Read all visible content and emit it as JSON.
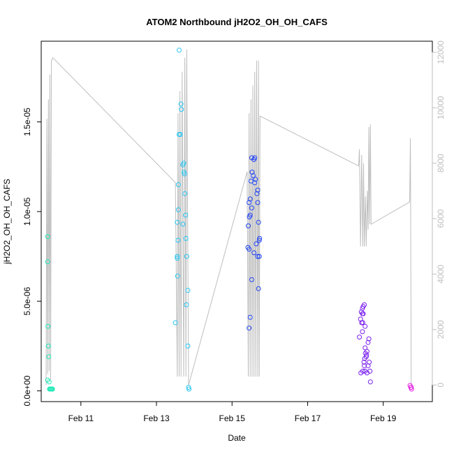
{
  "chart_data": {
    "type": "scatter",
    "title": "ATOM2 Northbound jH2O2_OH_OH_CAFS",
    "xlabel": "Date",
    "ylabel": "jH2O2_OH_OH_CAFS",
    "x_ticks": [
      "Feb 11",
      "Feb 13",
      "Feb 15",
      "Feb 17",
      "Feb 19"
    ],
    "x_tick_values": [
      11,
      13,
      15,
      17,
      19
    ],
    "xlim": [
      9.95,
      20.3
    ],
    "y_ticks": [
      "0.0e+00",
      "5.0e-06",
      "1.0e-05",
      "1.5e-05"
    ],
    "y_tick_values": [
      0,
      5e-06,
      1e-05,
      1.5e-05
    ],
    "ylim": [
      -6e-07,
      1.95e-05
    ],
    "y2_ticks": [
      "0",
      "2000",
      "4000",
      "6000",
      "8000",
      "10000",
      "12000"
    ],
    "y2_tick_values": [
      0,
      2000,
      4000,
      6000,
      8000,
      10000,
      12000
    ],
    "y2lim": [
      -600,
      12400
    ],
    "colors": {
      "axis": "#000000",
      "secondary_axis": "#bebebe",
      "altitude_line": "#bebebe"
    },
    "series": [
      {
        "color": "#1de9b6",
        "points": [
          [
            10.12,
            8.6e-06
          ],
          [
            10.12,
            7.2e-06
          ],
          [
            10.13,
            3.6e-06
          ],
          [
            10.14,
            2.5e-06
          ],
          [
            10.15,
            1.9e-06
          ],
          [
            10.12,
            6e-07
          ],
          [
            10.16,
            5e-07
          ],
          [
            10.17,
            1e-07
          ],
          [
            10.19,
            1e-07
          ],
          [
            10.21,
            1e-07
          ],
          [
            10.23,
            1e-07
          ],
          [
            10.25,
            1e-07
          ]
        ]
      },
      {
        "color": "#26c6f2",
        "points": [
          [
            13.6,
            1.9e-05
          ],
          [
            13.65,
            1.6e-05
          ],
          [
            13.66,
            1.57e-05
          ],
          [
            13.6,
            1.43e-05
          ],
          [
            13.63,
            1.43e-05
          ],
          [
            13.72,
            1.27e-05
          ],
          [
            13.7,
            1.26e-05
          ],
          [
            13.73,
            1.22e-05
          ],
          [
            13.74,
            1.21e-05
          ],
          [
            13.58,
            1.15e-05
          ],
          [
            13.75,
            1.1e-05
          ],
          [
            13.58,
            1.01e-05
          ],
          [
            13.77,
            9.8e-06
          ],
          [
            13.55,
            9.4e-06
          ],
          [
            13.7,
            9.3e-06
          ],
          [
            13.57,
            8.4e-06
          ],
          [
            13.78,
            8.5e-06
          ],
          [
            13.55,
            7.5e-06
          ],
          [
            13.55,
            7.4e-06
          ],
          [
            13.8,
            7.5e-06
          ],
          [
            13.56,
            6.4e-06
          ],
          [
            13.83,
            5.6e-06
          ],
          [
            13.79,
            4.8e-06
          ],
          [
            13.5,
            3.8e-06
          ],
          [
            13.83,
            2.5e-06
          ],
          [
            13.85,
            2e-07
          ],
          [
            13.86,
            1e-07
          ]
        ]
      },
      {
        "color": "#2043f5",
        "points": [
          [
            15.52,
            1.3e-05
          ],
          [
            15.6,
            1.3e-05
          ],
          [
            15.58,
            1.29e-05
          ],
          [
            15.53,
            1.22e-05
          ],
          [
            15.56,
            1.2e-05
          ],
          [
            15.62,
            1.18e-05
          ],
          [
            15.5,
            1.17e-05
          ],
          [
            15.6,
            1.16e-05
          ],
          [
            15.68,
            1.12e-05
          ],
          [
            15.66,
            1.1e-05
          ],
          [
            15.48,
            1.07e-05
          ],
          [
            15.45,
            1.05e-05
          ],
          [
            15.68,
            1.05e-05
          ],
          [
            15.52,
            1.02e-05
          ],
          [
            15.48,
            9.8e-06
          ],
          [
            15.46,
            9.7e-06
          ],
          [
            15.7,
            9.4e-06
          ],
          [
            15.43,
            9.2e-06
          ],
          [
            15.73,
            8.5e-06
          ],
          [
            15.72,
            8.4e-06
          ],
          [
            15.64,
            8.2e-06
          ],
          [
            15.42,
            8e-06
          ],
          [
            15.45,
            7.9e-06
          ],
          [
            15.58,
            7.7e-06
          ],
          [
            15.68,
            7.5e-06
          ],
          [
            15.72,
            7.5e-06
          ],
          [
            15.52,
            6.2e-06
          ],
          [
            15.7,
            5.7e-06
          ],
          [
            15.48,
            4.1e-06
          ],
          [
            15.45,
            3.5e-06
          ]
        ]
      },
      {
        "color": "#7a1ff0",
        "points": [
          [
            18.5,
            4.8e-06
          ],
          [
            18.47,
            4.7e-06
          ],
          [
            18.45,
            4.6e-06
          ],
          [
            18.42,
            4.4e-06
          ],
          [
            18.47,
            4.3e-06
          ],
          [
            18.45,
            4.3e-06
          ],
          [
            18.4,
            4e-06
          ],
          [
            18.43,
            3.8e-06
          ],
          [
            18.46,
            3.8e-06
          ],
          [
            18.52,
            3.6e-06
          ],
          [
            18.45,
            3.3e-06
          ],
          [
            18.37,
            3e-06
          ],
          [
            18.62,
            2.9e-06
          ],
          [
            18.6,
            2.7e-06
          ],
          [
            18.52,
            2.4e-06
          ],
          [
            18.57,
            2.2e-06
          ],
          [
            18.53,
            2.1e-06
          ],
          [
            18.56,
            2e-06
          ],
          [
            18.55,
            1.9e-06
          ],
          [
            18.51,
            1.8e-06
          ],
          [
            18.49,
            1.6e-06
          ],
          [
            18.63,
            1.6e-06
          ],
          [
            18.5,
            1.4e-06
          ],
          [
            18.6,
            1.4e-06
          ],
          [
            18.46,
            1.1e-06
          ],
          [
            18.41,
            1e-06
          ],
          [
            18.57,
            1e-06
          ],
          [
            18.65,
            1.1e-06
          ],
          [
            18.52,
            1.1e-06
          ],
          [
            18.66,
            5e-07
          ]
        ]
      },
      {
        "color": "#e41de6",
        "points": [
          [
            19.71,
            3e-07
          ],
          [
            19.73,
            2e-07
          ],
          [
            19.74,
            2e-07
          ],
          [
            19.75,
            1e-07
          ]
        ]
      }
    ],
    "altitude_line": {
      "axis": "secondary",
      "points": [
        [
          10.08,
          0
        ],
        [
          10.1,
          9600
        ],
        [
          10.12,
          400
        ],
        [
          10.14,
          10300
        ],
        [
          10.16,
          500
        ],
        [
          10.18,
          11200
        ],
        [
          10.2,
          200
        ],
        [
          10.22,
          11700
        ],
        [
          10.26,
          11800
        ],
        [
          13.5,
          7300
        ],
        [
          13.55,
          300
        ],
        [
          13.57,
          9800
        ],
        [
          13.6,
          300
        ],
        [
          13.62,
          10600
        ],
        [
          13.65,
          300
        ],
        [
          13.68,
          11300
        ],
        [
          13.72,
          300
        ],
        [
          13.75,
          11800
        ],
        [
          13.78,
          300
        ],
        [
          13.8,
          12100
        ],
        [
          13.85,
          0
        ],
        [
          15.4,
          7700
        ],
        [
          15.43,
          300
        ],
        [
          15.45,
          9800
        ],
        [
          15.48,
          300
        ],
        [
          15.5,
          10300
        ],
        [
          15.53,
          300
        ],
        [
          15.55,
          10800
        ],
        [
          15.58,
          300
        ],
        [
          15.6,
          11300
        ],
        [
          15.63,
          300
        ],
        [
          15.65,
          11700
        ],
        [
          15.68,
          300
        ],
        [
          15.7,
          11700
        ],
        [
          15.72,
          300
        ],
        [
          15.74,
          9700
        ],
        [
          18.35,
          7900
        ],
        [
          18.37,
          8500
        ],
        [
          18.4,
          5000
        ],
        [
          18.43,
          8300
        ],
        [
          18.46,
          5000
        ],
        [
          18.48,
          8000
        ],
        [
          18.5,
          5000
        ],
        [
          18.53,
          6800
        ],
        [
          18.55,
          5000
        ],
        [
          18.58,
          7000
        ],
        [
          18.6,
          5600
        ],
        [
          18.62,
          9300
        ],
        [
          18.64,
          5800
        ],
        [
          18.66,
          9400
        ],
        [
          18.68,
          5800
        ],
        [
          19.7,
          6600
        ],
        [
          19.72,
          8900
        ],
        [
          19.74,
          0
        ]
      ]
    }
  }
}
